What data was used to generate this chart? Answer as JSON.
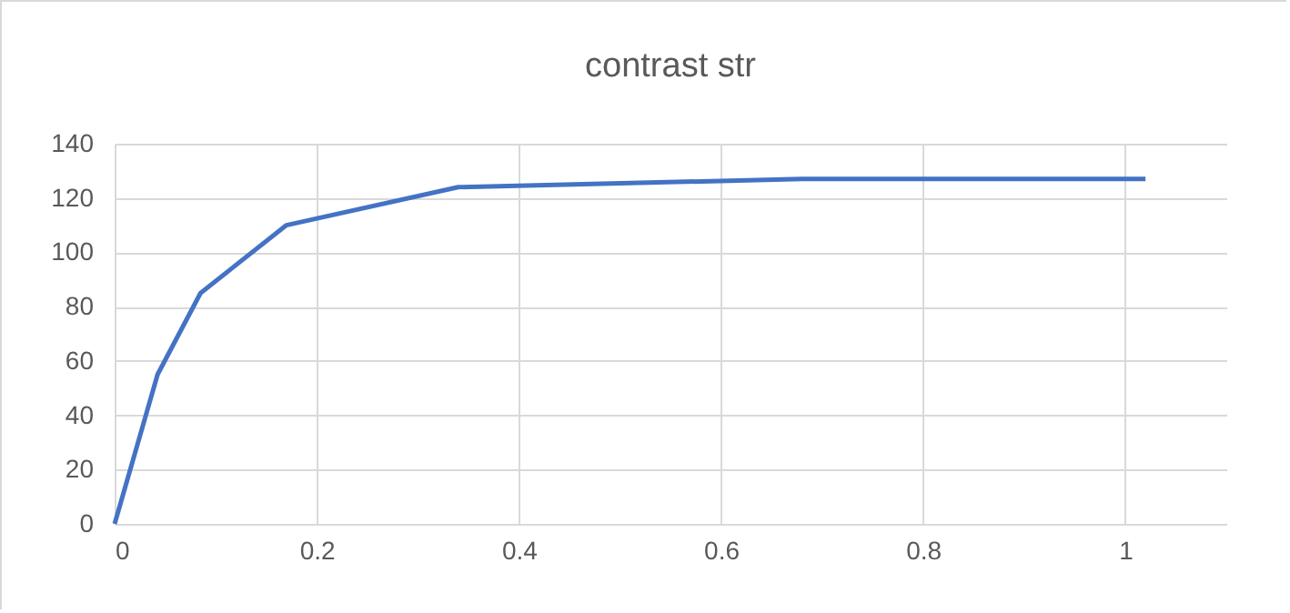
{
  "chart_data": {
    "type": "line",
    "title": "contrast str",
    "x": [
      0,
      0.0425,
      0.085,
      0.17,
      0.34,
      0.68,
      1.02
    ],
    "series": [
      {
        "color": "#4472c4",
        "values": [
          0,
          55,
          85,
          110,
          124,
          127,
          127
        ]
      }
    ],
    "xlim": [
      0,
      1.1
    ],
    "xticks": [
      0,
      0.2,
      0.4,
      0.6,
      0.8,
      1
    ],
    "ylim": [
      0,
      140
    ],
    "yticks": [
      0,
      20,
      40,
      60,
      80,
      100,
      120,
      140
    ],
    "grid": true,
    "legend": false,
    "marker": "none",
    "line_style": "solid"
  }
}
